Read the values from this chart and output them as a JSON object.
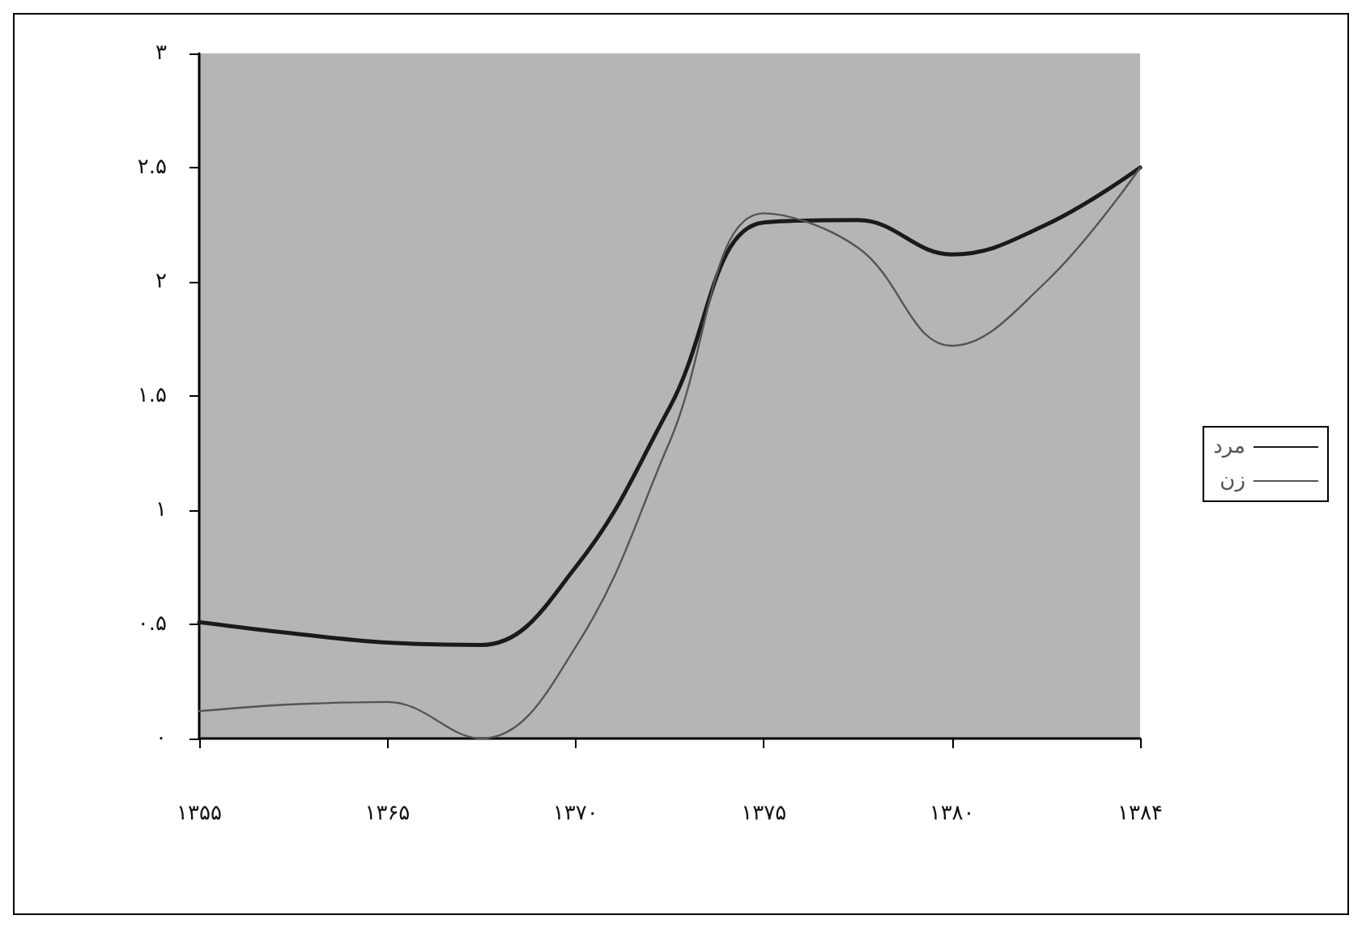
{
  "chart_data": {
    "type": "line",
    "categories": [
      "۱۳۵۵",
      null,
      "۱۳۶۵",
      null,
      "۱۳۷۰",
      null,
      "۱۳۷۵",
      null,
      "۱۳۸۰",
      null,
      "۱۳۸۴"
    ],
    "series": [
      {
        "name": "مرد",
        "color": "#1a1a1a",
        "values": [
          0.51,
          0.46,
          0.42,
          0.41,
          0.75,
          1.45,
          2.26,
          2.27,
          2.12,
          2.25,
          2.5
        ]
      },
      {
        "name": "زن",
        "color": "#555555",
        "values": [
          0.12,
          0.15,
          0.16,
          0.0,
          0.4,
          1.3,
          2.3,
          2.15,
          1.72,
          2.0,
          2.5
        ]
      }
    ],
    "ylim": [
      0,
      3
    ],
    "yticks": [
      {
        "value": 0,
        "label": "۰"
      },
      {
        "value": 0.5,
        "label": "۰.۵"
      },
      {
        "value": 1,
        "label": "۱"
      },
      {
        "value": 1.5,
        "label": "۱.۵"
      },
      {
        "value": 2,
        "label": "۲"
      },
      {
        "value": 2.5,
        "label": "۲.۵"
      },
      {
        "value": 3,
        "label": "۳"
      }
    ],
    "grid": false,
    "legend": "right",
    "marker": "none",
    "line_style": "solid"
  }
}
